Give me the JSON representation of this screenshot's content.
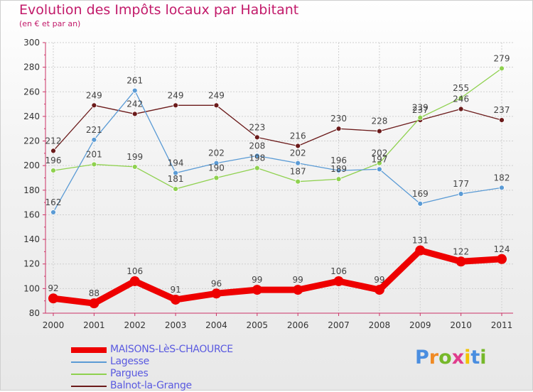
{
  "title": "Evolution des Impôts locaux par Habitant",
  "subtitle": "(en € et par an)",
  "brand": "Proxiti",
  "brand_colors": [
    "#4a8ee0",
    "#f08a24",
    "#76b82a",
    "#e03c8c",
    "#f3c300",
    "#4a8ee0",
    "#76b82a"
  ],
  "chart_data": {
    "type": "line",
    "x": [
      "2000",
      "2001",
      "2002",
      "2003",
      "2004",
      "2005",
      "2006",
      "2007",
      "2008",
      "2009",
      "2010",
      "2011"
    ],
    "ylim": [
      80,
      300
    ],
    "yticks": [
      "80",
      "100",
      "120",
      "140",
      "160",
      "180",
      "200",
      "220",
      "240",
      "260",
      "280",
      "300"
    ],
    "grid": true,
    "legend_position": "bottom-left",
    "series": [
      {
        "name": "MAISONS-LèS-CHAOURCE",
        "color": "#ee0000",
        "values": [
          92,
          88,
          106,
          91,
          96,
          99,
          99,
          106,
          99,
          131,
          122,
          124
        ],
        "labels": [
          "92",
          "88",
          "106",
          "91",
          "96",
          "99",
          "99",
          "106",
          "99",
          "131",
          "122",
          "124"
        ]
      },
      {
        "name": "Lagesse",
        "color": "#5b9bd5",
        "values": [
          162,
          221,
          261,
          194,
          202,
          208,
          202,
          196,
          197,
          169,
          177,
          182
        ],
        "labels": [
          "162",
          "221",
          "261",
          "194",
          "202",
          "208",
          "202",
          "196",
          "197",
          "169",
          "177",
          "182"
        ]
      },
      {
        "name": "Pargues",
        "color": "#8fd14f",
        "values": [
          196,
          201,
          199,
          181,
          190,
          198,
          187,
          189,
          202,
          239,
          255,
          279
        ],
        "labels": [
          "196",
          "201",
          "199",
          "181",
          "190",
          "198",
          "187",
          "189",
          "202",
          "239",
          "255",
          "279"
        ]
      },
      {
        "name": "Balnot-la-Grange",
        "color": "#6b1a1a",
        "values": [
          212,
          249,
          242,
          249,
          249,
          223,
          216,
          230,
          228,
          237,
          246,
          237
        ],
        "labels": [
          "212",
          "249",
          "242",
          "249",
          "249",
          "223",
          "216",
          "230",
          "228",
          "237",
          "246",
          "237"
        ]
      }
    ]
  }
}
